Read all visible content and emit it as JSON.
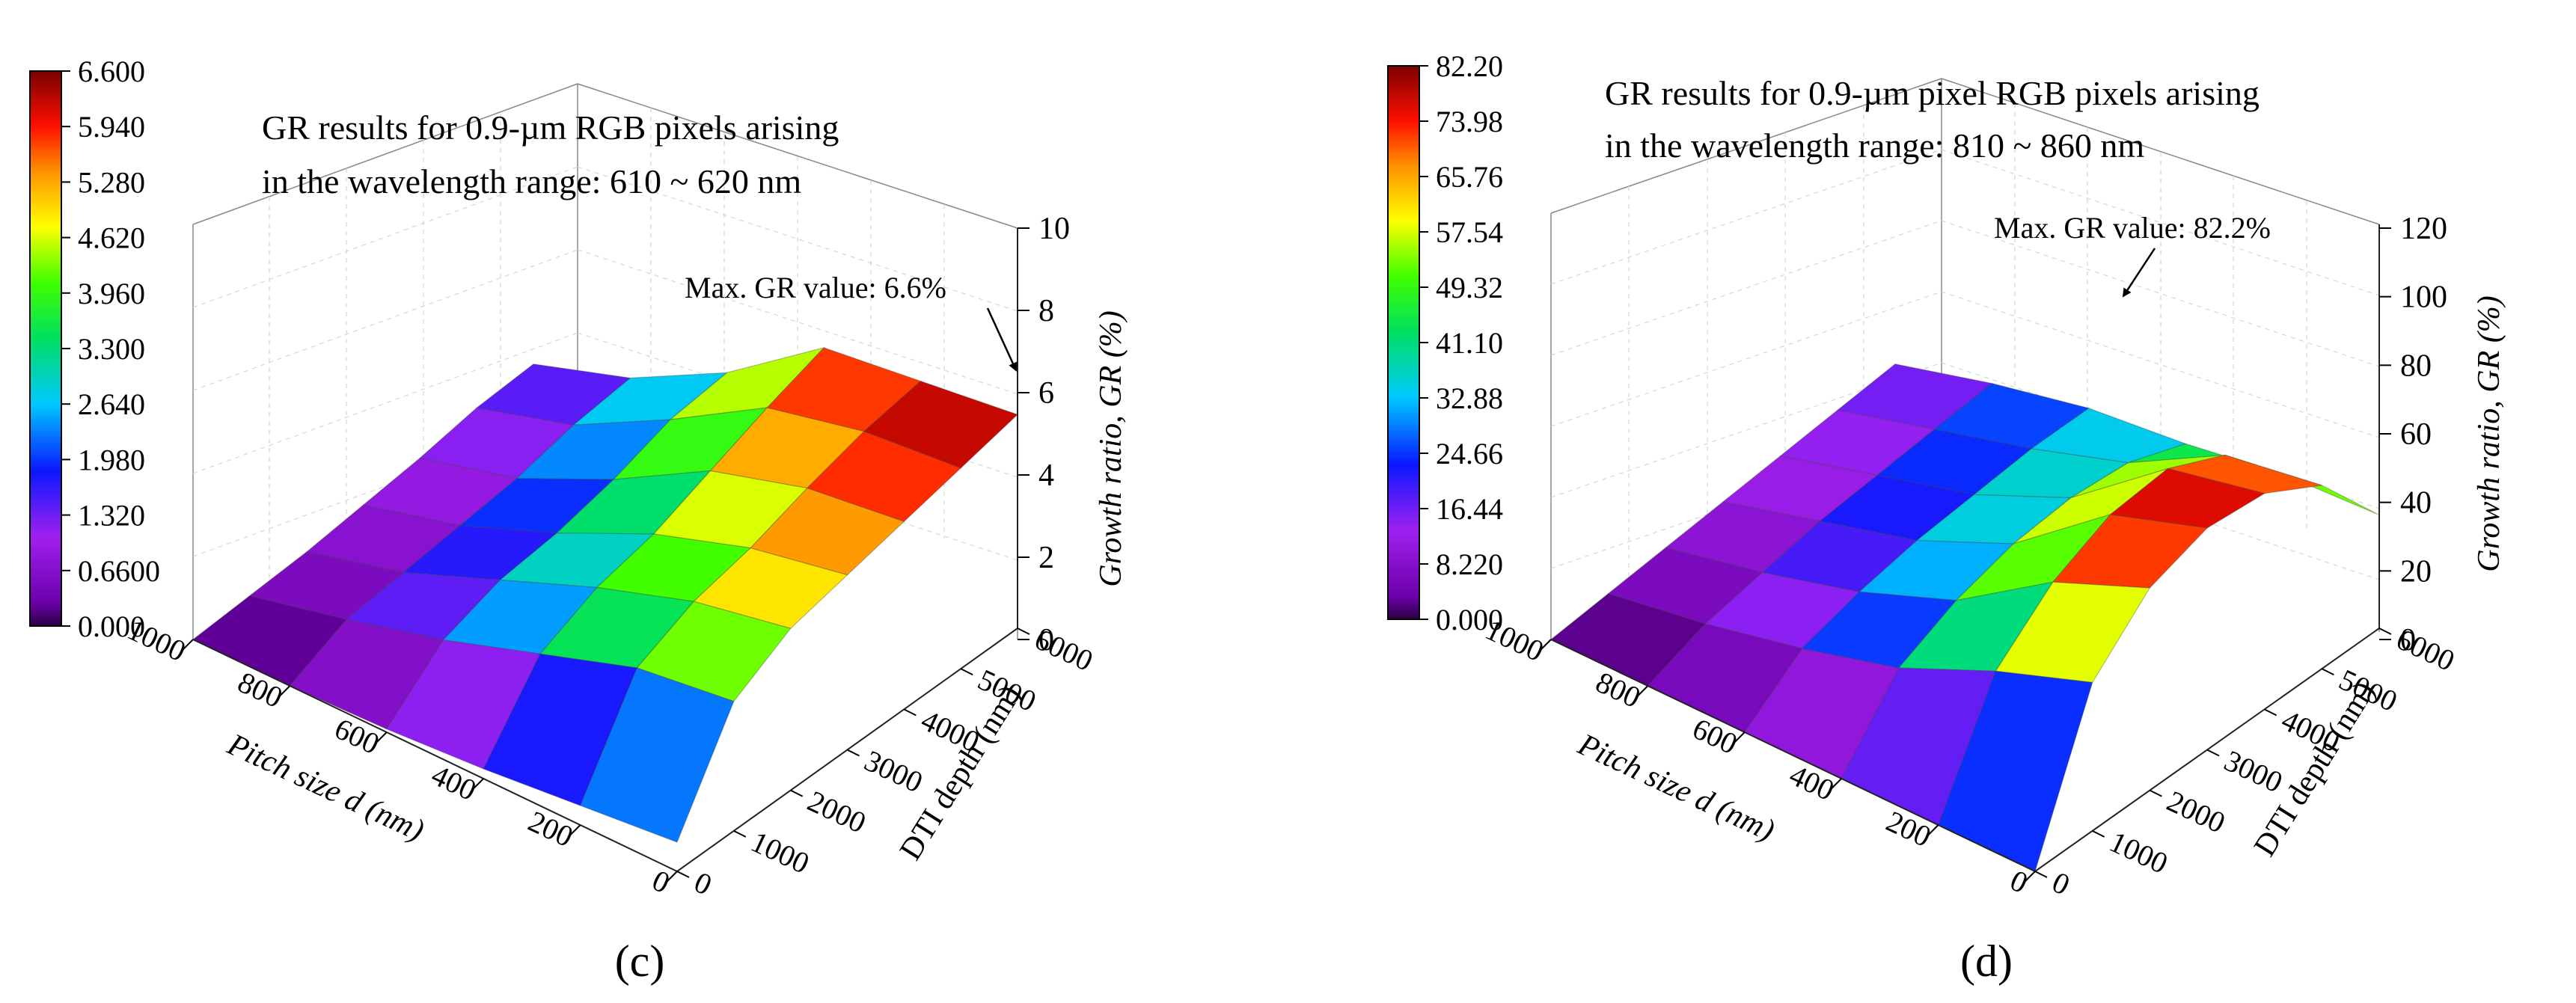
{
  "chart_data": [
    {
      "type": "surface3d",
      "panel_label": "(c)",
      "title_lines": [
        "GR results for 0.9-µm RGB pixels arising",
        "in the wavelength range: 610 ~ 620 nm"
      ],
      "annotation": "Max. GR value: 6.6%",
      "colorbar": {
        "ticks": [
          "6.600",
          "5.940",
          "5.280",
          "4.620",
          "3.960",
          "3.300",
          "2.640",
          "1.980",
          "1.320",
          "0.6600",
          "0.000"
        ],
        "min": 0,
        "max": 6.6
      },
      "z_label": "Growth ratio, GR (%)",
      "z_ticks": [
        "0",
        "2",
        "4",
        "6",
        "8",
        "10"
      ],
      "zlim": [
        0,
        10
      ],
      "x_label": "Pitch size d (nm)",
      "x_ticks": [
        "1000",
        "800",
        "600",
        "400",
        "200",
        "0"
      ],
      "y_label": "DTI depth (nm)",
      "y_ticks": [
        "0",
        "1000",
        "2000",
        "3000",
        "4000",
        "5000",
        "6000"
      ],
      "pitch": [
        1000,
        800,
        600,
        400,
        200,
        0
      ],
      "depth": [
        0,
        1000,
        2000,
        3000,
        4000,
        5000,
        6000
      ],
      "z": [
        [
          0.0,
          0.1,
          0.2,
          0.4,
          0.6,
          0.9,
          1.0
        ],
        [
          0.0,
          0.8,
          1.0,
          1.2,
          1.4,
          1.8,
          2.0
        ],
        [
          0.1,
          1.6,
          2.2,
          2.4,
          2.8,
          3.4,
          3.6
        ],
        [
          0.3,
          2.6,
          3.4,
          3.8,
          4.5,
          5.2,
          5.8
        ],
        [
          0.6,
          3.6,
          4.4,
          4.8,
          5.4,
          5.9,
          6.2
        ],
        [
          0.9,
          4.0,
          5.0,
          5.4,
          5.8,
          6.2,
          6.6
        ]
      ]
    },
    {
      "type": "surface3d",
      "panel_label": "(d)",
      "title_lines": [
        "GR results for 0.9-µm pixel RGB pixels arising",
        "in the wavelength range: 810 ~ 860 nm"
      ],
      "annotation": "Max. GR value: 82.2%",
      "colorbar": {
        "ticks": [
          "82.20",
          "73.98",
          "65.76",
          "57.54",
          "49.32",
          "41.10",
          "32.88",
          "24.66",
          "16.44",
          "8.220",
          "0.000"
        ],
        "min": 0,
        "max": 82.2
      },
      "z_label": "Growth ratio, GR (%)",
      "z_ticks": [
        "0",
        "20",
        "40",
        "60",
        "80",
        "100",
        "120"
      ],
      "zlim": [
        0,
        120
      ],
      "x_label": "Pitch size d (nm)",
      "x_ticks": [
        "1000",
        "800",
        "600",
        "400",
        "200",
        "0"
      ],
      "y_label": "DTI depth (nm)",
      "y_ticks": [
        "0",
        "1000",
        "2000",
        "3000",
        "4000",
        "5000",
        "6000"
      ],
      "pitch": [
        1000,
        800,
        600,
        400,
        200,
        0
      ],
      "depth": [
        0,
        1000,
        2000,
        3000,
        4000,
        5000,
        6000
      ],
      "z": [
        [
          0.0,
          2.0,
          4.0,
          6.0,
          8.0,
          10.0,
          12.0
        ],
        [
          0.0,
          8.0,
          12.0,
          16.0,
          18.0,
          20.0,
          22.0
        ],
        [
          0.0,
          16.0,
          22.0,
          26.0,
          28.0,
          30.0,
          30.0
        ],
        [
          0.0,
          26.0,
          36.0,
          42.0,
          44.0,
          42.0,
          34.0
        ],
        [
          0.0,
          42.0,
          60.0,
          70.0,
          72.0,
          62.0,
          40.0
        ],
        [
          0.0,
          55.0,
          75.0,
          82.2,
          80.0,
          68.0,
          42.0
        ]
      ]
    }
  ]
}
